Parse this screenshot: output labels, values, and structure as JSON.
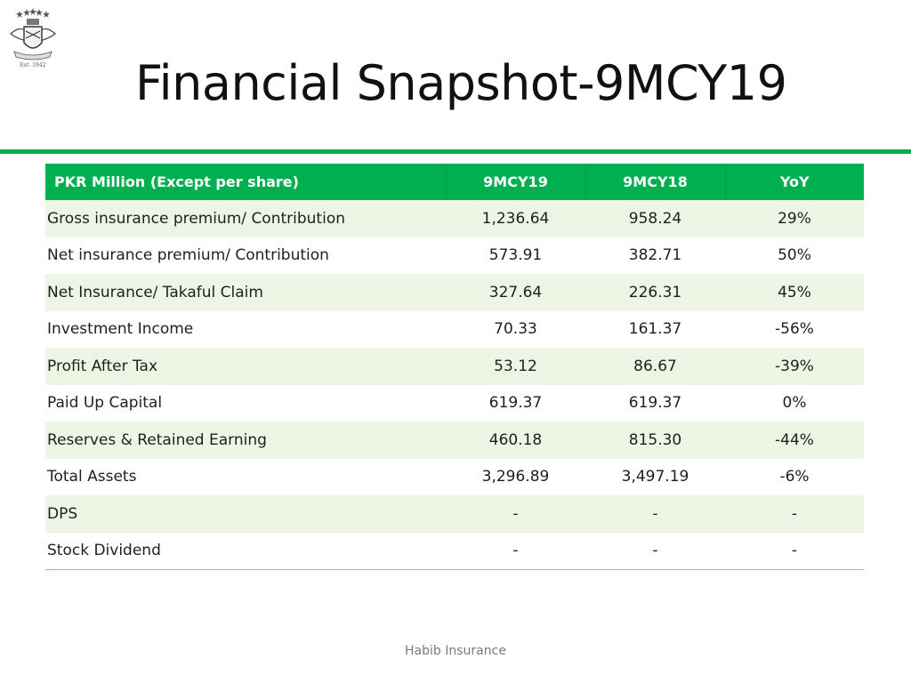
{
  "slide": {
    "title": "Financial Snapshot-9MCY19",
    "footer": "Habib Insurance"
  },
  "logo": {
    "name": "company-crest-icon",
    "caption": "Est. 1942"
  },
  "table": {
    "headers": [
      "PKR Million (Except per share)",
      "9MCY19",
      "9MCY18",
      "YoY"
    ],
    "rows": [
      [
        "Gross insurance premium/ Contribution",
        "1,236.64",
        "958.24",
        "29%"
      ],
      [
        "Net insurance premium/ Contribution",
        "573.91",
        "382.71",
        "50%"
      ],
      [
        "Net Insurance/ Takaful Claim",
        "327.64",
        "226.31",
        "45%"
      ],
      [
        "Investment Income",
        "70.33",
        "161.37",
        "-56%"
      ],
      [
        "Profit After Tax",
        "53.12",
        "86.67",
        "-39%"
      ],
      [
        "Paid Up Capital",
        "619.37",
        "619.37",
        "0%"
      ],
      [
        "Reserves & Retained Earning",
        "460.18",
        "815.30",
        "-44%"
      ],
      [
        "Total Assets",
        "3,296.89",
        "3,497.19",
        "-6%"
      ],
      [
        "DPS",
        "-",
        "-",
        "-"
      ],
      [
        "Stock Dividend",
        "-",
        "-",
        "-"
      ]
    ]
  },
  "colors": {
    "accent_green": "#00b050",
    "band_green": "#eef5e4"
  }
}
